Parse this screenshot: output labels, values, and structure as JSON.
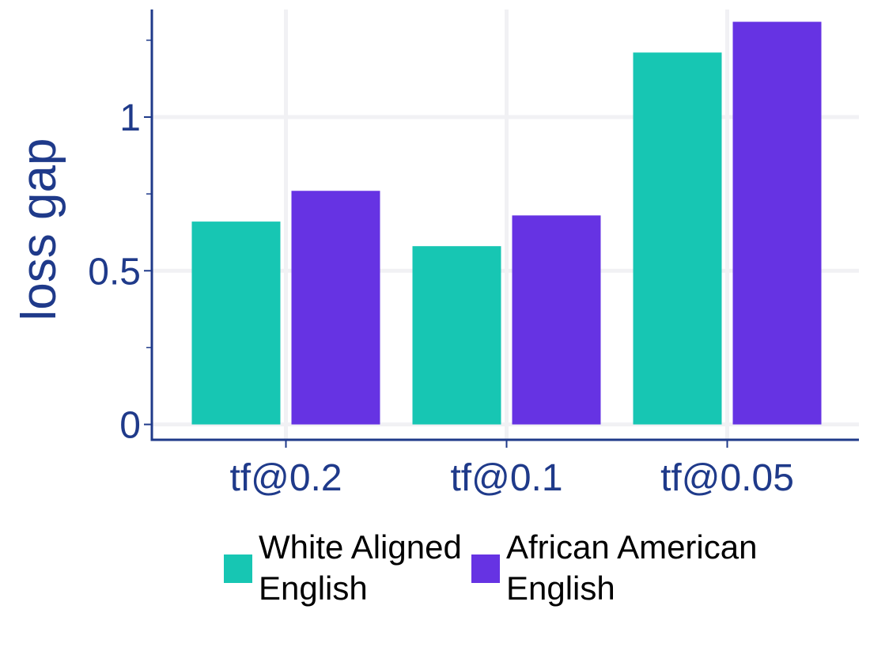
{
  "chart_data": {
    "type": "bar",
    "categories": [
      "tf@0.2",
      "tf@0.1",
      "tf@0.05"
    ],
    "series": [
      {
        "name": "White Aligned English",
        "values": [
          0.66,
          0.58,
          1.21
        ],
        "color": "#17c6b3"
      },
      {
        "name": "African American English",
        "values": [
          0.76,
          0.68,
          1.31
        ],
        "color": "#6633e3"
      }
    ],
    "legend_lines": [
      [
        "White Aligned",
        "English"
      ],
      [
        "African American",
        "English"
      ]
    ],
    "ylabel": "loss gap",
    "xlabel": "",
    "title": "",
    "ylim": [
      -0.05,
      1.35
    ],
    "yticks": [
      0,
      0.5,
      1
    ],
    "yticks_minor": [
      0.25,
      0.75,
      1.25
    ],
    "ytick_labels": [
      "0",
      "0.5",
      "1"
    ],
    "grid": true,
    "legend_position": "bottom",
    "axis_color": "#1f3a8a",
    "grid_color": "#f1f1f4"
  }
}
